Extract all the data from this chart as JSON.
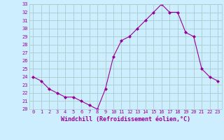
{
  "x": [
    0,
    1,
    2,
    3,
    4,
    5,
    6,
    7,
    8,
    9,
    10,
    11,
    12,
    13,
    14,
    15,
    16,
    17,
    18,
    19,
    20,
    21,
    22,
    23
  ],
  "y": [
    24.0,
    23.5,
    22.5,
    22.0,
    21.5,
    21.5,
    21.0,
    20.5,
    20.0,
    22.5,
    26.5,
    28.5,
    29.0,
    30.0,
    31.0,
    32.0,
    33.0,
    32.0,
    32.0,
    29.5,
    29.0,
    25.0,
    24.0,
    23.5
  ],
  "line_color": "#990099",
  "marker": "D",
  "markersize": 2.0,
  "bg_color": "#cceeff",
  "grid_color": "#aacccc",
  "xlabel": "Windchill (Refroidissement éolien,°C)",
  "ylim": [
    20,
    33
  ],
  "xlim_min": -0.5,
  "xlim_max": 23.5,
  "yticks": [
    20,
    21,
    22,
    23,
    24,
    25,
    26,
    27,
    28,
    29,
    30,
    31,
    32,
    33
  ],
  "xticks": [
    0,
    1,
    2,
    3,
    4,
    5,
    6,
    7,
    8,
    9,
    10,
    11,
    12,
    13,
    14,
    15,
    16,
    17,
    18,
    19,
    20,
    21,
    22,
    23
  ],
  "tick_label_color": "#990099",
  "xlabel_color": "#990099",
  "font_family": "monospace",
  "tick_fontsize": 5.0,
  "xlabel_fontsize": 6.0
}
